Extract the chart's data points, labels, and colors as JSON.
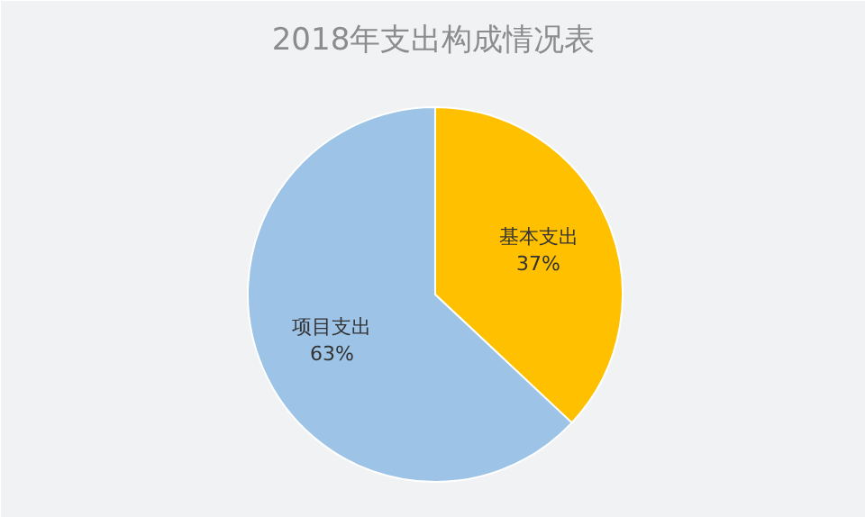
{
  "chart_data": {
    "type": "pie",
    "title": "2018年支出构成情况表",
    "categories": [
      "基本支出",
      "项目支出"
    ],
    "values": [
      37,
      63
    ],
    "colors": [
      "#ffc000",
      "#9dc3e6"
    ],
    "value_labels": [
      "37%",
      "63%"
    ]
  }
}
